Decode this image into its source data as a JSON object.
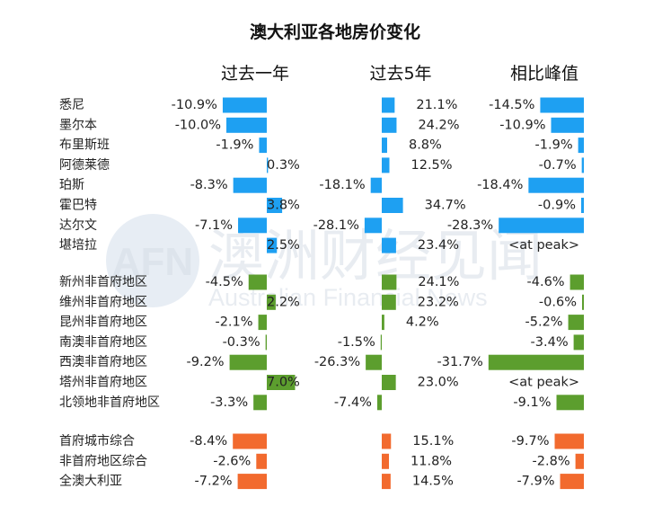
{
  "title": "澳大利亚各地房价变化",
  "watermark": {
    "logo": "AFN",
    "name_cn": "澳洲财经见闻",
    "name_en": "Australian Financial News"
  },
  "colors": {
    "capital": "#1ea0f2",
    "regional": "#5c9e2e",
    "combined": "#f26a2e",
    "text": "#222222"
  },
  "chart_data": {
    "type": "bar",
    "orientation": "horizontal",
    "title": "澳大利亚各地房价变化",
    "panels": [
      "过去一年",
      "过去5年",
      "相比峰值"
    ],
    "groups": [
      {
        "color_key": "capital",
        "rows": [
          {
            "label": "悉尼",
            "values": [
              -10.9,
              21.1,
              -14.5
            ],
            "texts": [
              "-10.9%",
              "21.1%",
              "-14.5%"
            ]
          },
          {
            "label": "墨尔本",
            "values": [
              -10.0,
              24.2,
              -10.9
            ],
            "texts": [
              "-10.0%",
              "24.2%",
              "-10.9%"
            ]
          },
          {
            "label": "布里斯班",
            "values": [
              -1.9,
              8.8,
              -1.9
            ],
            "texts": [
              "-1.9%",
              "8.8%",
              "-1.9%"
            ]
          },
          {
            "label": "阿德莱德",
            "values": [
              0.3,
              12.5,
              -0.7
            ],
            "texts": [
              "0.3%",
              "12.5%",
              "-0.7%"
            ]
          },
          {
            "label": "珀斯",
            "values": [
              -8.3,
              -18.1,
              -18.4
            ],
            "texts": [
              "-8.3%",
              "-18.1%",
              "-18.4%"
            ]
          },
          {
            "label": "霍巴特",
            "values": [
              3.8,
              34.7,
              -0.9
            ],
            "texts": [
              "3.8%",
              "34.7%",
              "-0.9%"
            ]
          },
          {
            "label": "达尔文",
            "values": [
              -7.1,
              -28.1,
              -28.3
            ],
            "texts": [
              "-7.1%",
              "-28.1%",
              "-28.3%"
            ]
          },
          {
            "label": "堪培拉",
            "values": [
              2.5,
              23.4,
              null
            ],
            "texts": [
              "2.5%",
              "23.4%",
              "<at peak>"
            ]
          }
        ]
      },
      {
        "color_key": "regional",
        "rows": [
          {
            "label": "新州非首府地区",
            "values": [
              -4.5,
              24.1,
              -4.6
            ],
            "texts": [
              "-4.5%",
              "24.1%",
              "-4.6%"
            ]
          },
          {
            "label": "维州非首府地区",
            "values": [
              2.2,
              23.2,
              -0.6
            ],
            "texts": [
              "2.2%",
              "23.2%",
              "-0.6%"
            ]
          },
          {
            "label": "昆州非首府地区",
            "values": [
              -2.1,
              4.2,
              -5.2
            ],
            "texts": [
              "-2.1%",
              "4.2%",
              "-5.2%"
            ]
          },
          {
            "label": "南澳非首府地区",
            "values": [
              -0.3,
              -1.5,
              -3.4
            ],
            "texts": [
              "-0.3%",
              "-1.5%",
              "-3.4%"
            ]
          },
          {
            "label": "西澳非首府地区",
            "values": [
              -9.2,
              -26.3,
              -31.7
            ],
            "texts": [
              "-9.2%",
              "-26.3%",
              "-31.7%"
            ]
          },
          {
            "label": "塔州非首府地区",
            "values": [
              7.0,
              23.0,
              null
            ],
            "texts": [
              "7.0%",
              "23.0%",
              "<at peak>"
            ]
          },
          {
            "label": "北领地非首府地区",
            "values": [
              -3.3,
              -7.4,
              -9.1
            ],
            "texts": [
              "-3.3%",
              "-7.4%",
              "-9.1%"
            ]
          }
        ]
      },
      {
        "color_key": "combined",
        "rows": [
          {
            "label": "首府城市综合",
            "values": [
              -8.4,
              15.1,
              -9.7
            ],
            "texts": [
              "-8.4%",
              "15.1%",
              "-9.7%"
            ]
          },
          {
            "label": "非首府地区综合",
            "values": [
              -2.6,
              11.8,
              -2.8
            ],
            "texts": [
              "-2.6%",
              "11.8%",
              "-2.8%"
            ]
          },
          {
            "label": "全澳大利亚",
            "values": [
              -7.2,
              14.5,
              -7.9
            ],
            "texts": [
              "-7.2%",
              "14.5%",
              "-7.9%"
            ]
          }
        ]
      }
    ]
  }
}
